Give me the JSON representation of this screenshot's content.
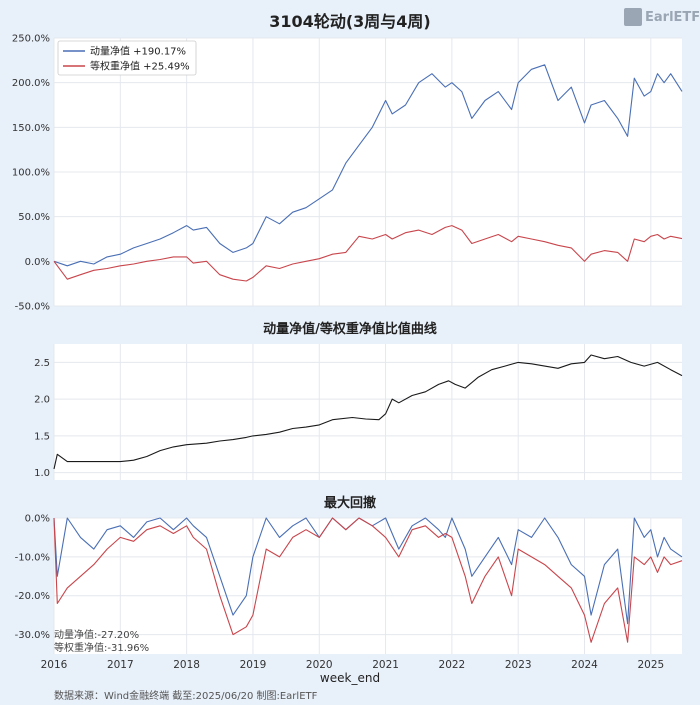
{
  "title": "3104轮动(3周与4周)",
  "logo_text": "EarlETF",
  "source": "数据来源：Wind金融终端 截至:2025/06/20 制图:EarlETF",
  "xlabel": "week_end",
  "colors": {
    "momentum": "#4a6fb5",
    "equal": "#c8464c",
    "ratio": "#1a1a1a",
    "background": "#e8f0fa",
    "panel": "#ffffff",
    "title": "#222222"
  },
  "chart_data": [
    {
      "type": "line",
      "title": "3104轮动(3周与4周)",
      "x_ticks": [
        "2016",
        "2017",
        "2018",
        "2019",
        "2020",
        "2021",
        "2022",
        "2023",
        "2024",
        "2025"
      ],
      "x_range": [
        2016.0,
        2025.47
      ],
      "ylim": [
        -50,
        250
      ],
      "y_ticks": [
        "250.0%",
        "200.0%",
        "150.0%",
        "100.0%",
        "50.0%",
        "0.0%",
        "-50.0%"
      ],
      "legend": [
        "动量净值  +190.17%",
        "等权重净值  +25.49%"
      ],
      "legend_position": "top-left",
      "grid": true,
      "series": [
        {
          "name": "动量净值",
          "x": [
            2016.0,
            2016.2,
            2016.4,
            2016.6,
            2016.8,
            2017.0,
            2017.2,
            2017.4,
            2017.6,
            2017.8,
            2018.0,
            2018.1,
            2018.3,
            2018.5,
            2018.7,
            2018.9,
            2019.0,
            2019.2,
            2019.4,
            2019.6,
            2019.8,
            2020.0,
            2020.2,
            2020.4,
            2020.6,
            2020.8,
            2021.0,
            2021.1,
            2021.3,
            2021.5,
            2021.7,
            2021.9,
            2022.0,
            2022.15,
            2022.3,
            2022.5,
            2022.7,
            2022.9,
            2023.0,
            2023.2,
            2023.4,
            2023.6,
            2023.8,
            2024.0,
            2024.1,
            2024.3,
            2024.5,
            2024.65,
            2024.75,
            2024.9,
            2025.0,
            2025.1,
            2025.2,
            2025.3,
            2025.47
          ],
          "y": [
            0,
            -5,
            0,
            -3,
            5,
            8,
            15,
            20,
            25,
            32,
            40,
            35,
            38,
            20,
            10,
            15,
            20,
            50,
            42,
            55,
            60,
            70,
            80,
            110,
            130,
            150,
            180,
            165,
            175,
            200,
            210,
            195,
            200,
            190,
            160,
            180,
            190,
            170,
            200,
            215,
            220,
            180,
            195,
            155,
            175,
            180,
            160,
            140,
            205,
            185,
            190,
            210,
            200,
            210,
            190.17
          ]
        },
        {
          "name": "等权重净值",
          "x": [
            2016.0,
            2016.2,
            2016.4,
            2016.6,
            2016.8,
            2017.0,
            2017.2,
            2017.4,
            2017.6,
            2017.8,
            2018.0,
            2018.1,
            2018.3,
            2018.5,
            2018.7,
            2018.9,
            2019.0,
            2019.2,
            2019.4,
            2019.6,
            2019.8,
            2020.0,
            2020.2,
            2020.4,
            2020.6,
            2020.8,
            2021.0,
            2021.1,
            2021.3,
            2021.5,
            2021.7,
            2021.9,
            2022.0,
            2022.15,
            2022.3,
            2022.5,
            2022.7,
            2022.9,
            2023.0,
            2023.2,
            2023.4,
            2023.6,
            2023.8,
            2024.0,
            2024.1,
            2024.3,
            2024.5,
            2024.65,
            2024.75,
            2024.9,
            2025.0,
            2025.1,
            2025.2,
            2025.3,
            2025.47
          ],
          "y": [
            0,
            -20,
            -15,
            -10,
            -8,
            -5,
            -3,
            0,
            2,
            5,
            5,
            -2,
            0,
            -15,
            -20,
            -22,
            -18,
            -5,
            -8,
            -3,
            0,
            3,
            8,
            10,
            28,
            25,
            30,
            25,
            32,
            35,
            30,
            38,
            40,
            35,
            20,
            25,
            30,
            22,
            28,
            25,
            22,
            18,
            15,
            0,
            8,
            12,
            10,
            0,
            25,
            22,
            28,
            30,
            25,
            28,
            25.49
          ]
        }
      ]
    },
    {
      "type": "line",
      "title": "动量净值/等权重净值比值曲线",
      "ylim": [
        0.9,
        2.75
      ],
      "y_ticks": [
        "2.5",
        "2.0",
        "1.5",
        "1.0"
      ],
      "grid": true,
      "series": [
        {
          "x": [
            2016.0,
            2016.05,
            2016.2,
            2016.5,
            2016.8,
            2017.0,
            2017.2,
            2017.4,
            2017.6,
            2017.8,
            2018.0,
            2018.3,
            2018.5,
            2018.7,
            2018.9,
            2019.0,
            2019.2,
            2019.4,
            2019.6,
            2019.8,
            2020.0,
            2020.2,
            2020.5,
            2020.7,
            2020.9,
            2021.0,
            2021.1,
            2021.2,
            2021.4,
            2021.6,
            2021.8,
            2021.95,
            2022.05,
            2022.2,
            2022.4,
            2022.6,
            2022.8,
            2023.0,
            2023.2,
            2023.4,
            2023.6,
            2023.8,
            2024.0,
            2024.1,
            2024.3,
            2024.5,
            2024.7,
            2024.9,
            2025.1,
            2025.3,
            2025.47
          ],
          "y": [
            1.05,
            1.25,
            1.15,
            1.15,
            1.15,
            1.15,
            1.17,
            1.22,
            1.3,
            1.35,
            1.38,
            1.4,
            1.43,
            1.45,
            1.48,
            1.5,
            1.52,
            1.55,
            1.6,
            1.62,
            1.65,
            1.72,
            1.75,
            1.73,
            1.72,
            1.8,
            2.0,
            1.95,
            2.05,
            2.1,
            2.2,
            2.25,
            2.2,
            2.15,
            2.3,
            2.4,
            2.45,
            2.5,
            2.48,
            2.45,
            2.42,
            2.48,
            2.5,
            2.6,
            2.55,
            2.58,
            2.5,
            2.45,
            2.5,
            2.4,
            2.32
          ]
        }
      ]
    },
    {
      "type": "line",
      "title": "最大回撤",
      "ylim": [
        -35,
        0
      ],
      "y_ticks": [
        "0.0%",
        "-10.0%",
        "-20.0%",
        "-30.0%"
      ],
      "grid": true,
      "annotations": [
        "动量净值:-27.20%",
        "等权重净值:-31.96%"
      ],
      "series": [
        {
          "name": "动量净值",
          "x": [
            2016.0,
            2016.05,
            2016.2,
            2016.4,
            2016.6,
            2016.8,
            2017.0,
            2017.2,
            2017.4,
            2017.6,
            2017.8,
            2018.0,
            2018.1,
            2018.3,
            2018.5,
            2018.7,
            2018.9,
            2019.0,
            2019.2,
            2019.4,
            2019.6,
            2019.8,
            2020.0,
            2020.2,
            2020.4,
            2020.6,
            2020.8,
            2021.0,
            2021.2,
            2021.4,
            2021.6,
            2021.8,
            2021.9,
            2022.0,
            2022.2,
            2022.3,
            2022.5,
            2022.7,
            2022.9,
            2023.0,
            2023.2,
            2023.4,
            2023.6,
            2023.8,
            2024.0,
            2024.1,
            2024.3,
            2024.5,
            2024.65,
            2024.75,
            2024.9,
            2025.0,
            2025.1,
            2025.2,
            2025.3,
            2025.47
          ],
          "y": [
            0,
            -15,
            0,
            -5,
            -8,
            -3,
            -2,
            -5,
            -1,
            0,
            -3,
            0,
            -2,
            -5,
            -15,
            -25,
            -20,
            -10,
            0,
            -5,
            -2,
            0,
            -5,
            0,
            -3,
            0,
            -2,
            0,
            -8,
            -2,
            0,
            -3,
            -5,
            0,
            -8,
            -15,
            -10,
            -5,
            -12,
            -3,
            -5,
            0,
            -5,
            -12,
            -15,
            -25,
            -12,
            -8,
            -27.2,
            0,
            -5,
            -3,
            -10,
            -5,
            -8,
            -10
          ]
        },
        {
          "name": "等权重净值",
          "x": [
            2016.0,
            2016.05,
            2016.2,
            2016.4,
            2016.6,
            2016.8,
            2017.0,
            2017.2,
            2017.4,
            2017.6,
            2017.8,
            2018.0,
            2018.1,
            2018.3,
            2018.5,
            2018.7,
            2018.9,
            2019.0,
            2019.2,
            2019.4,
            2019.6,
            2019.8,
            2020.0,
            2020.2,
            2020.4,
            2020.6,
            2020.8,
            2021.0,
            2021.2,
            2021.4,
            2021.6,
            2021.8,
            2021.9,
            2022.0,
            2022.2,
            2022.3,
            2022.5,
            2022.7,
            2022.9,
            2023.0,
            2023.2,
            2023.4,
            2023.6,
            2023.8,
            2024.0,
            2024.1,
            2024.3,
            2024.5,
            2024.65,
            2024.75,
            2024.9,
            2025.0,
            2025.1,
            2025.2,
            2025.3,
            2025.47
          ],
          "y": [
            0,
            -22,
            -18,
            -15,
            -12,
            -8,
            -5,
            -6,
            -3,
            -2,
            -4,
            -2,
            -5,
            -8,
            -20,
            -30,
            -28,
            -25,
            -8,
            -10,
            -5,
            -3,
            -5,
            0,
            -3,
            0,
            -2,
            -5,
            -10,
            -3,
            -2,
            -5,
            -4,
            -5,
            -15,
            -22,
            -15,
            -10,
            -20,
            -8,
            -10,
            -12,
            -15,
            -18,
            -25,
            -32,
            -22,
            -18,
            -31.96,
            -10,
            -12,
            -10,
            -14,
            -10,
            -12,
            -11
          ]
        }
      ]
    }
  ]
}
